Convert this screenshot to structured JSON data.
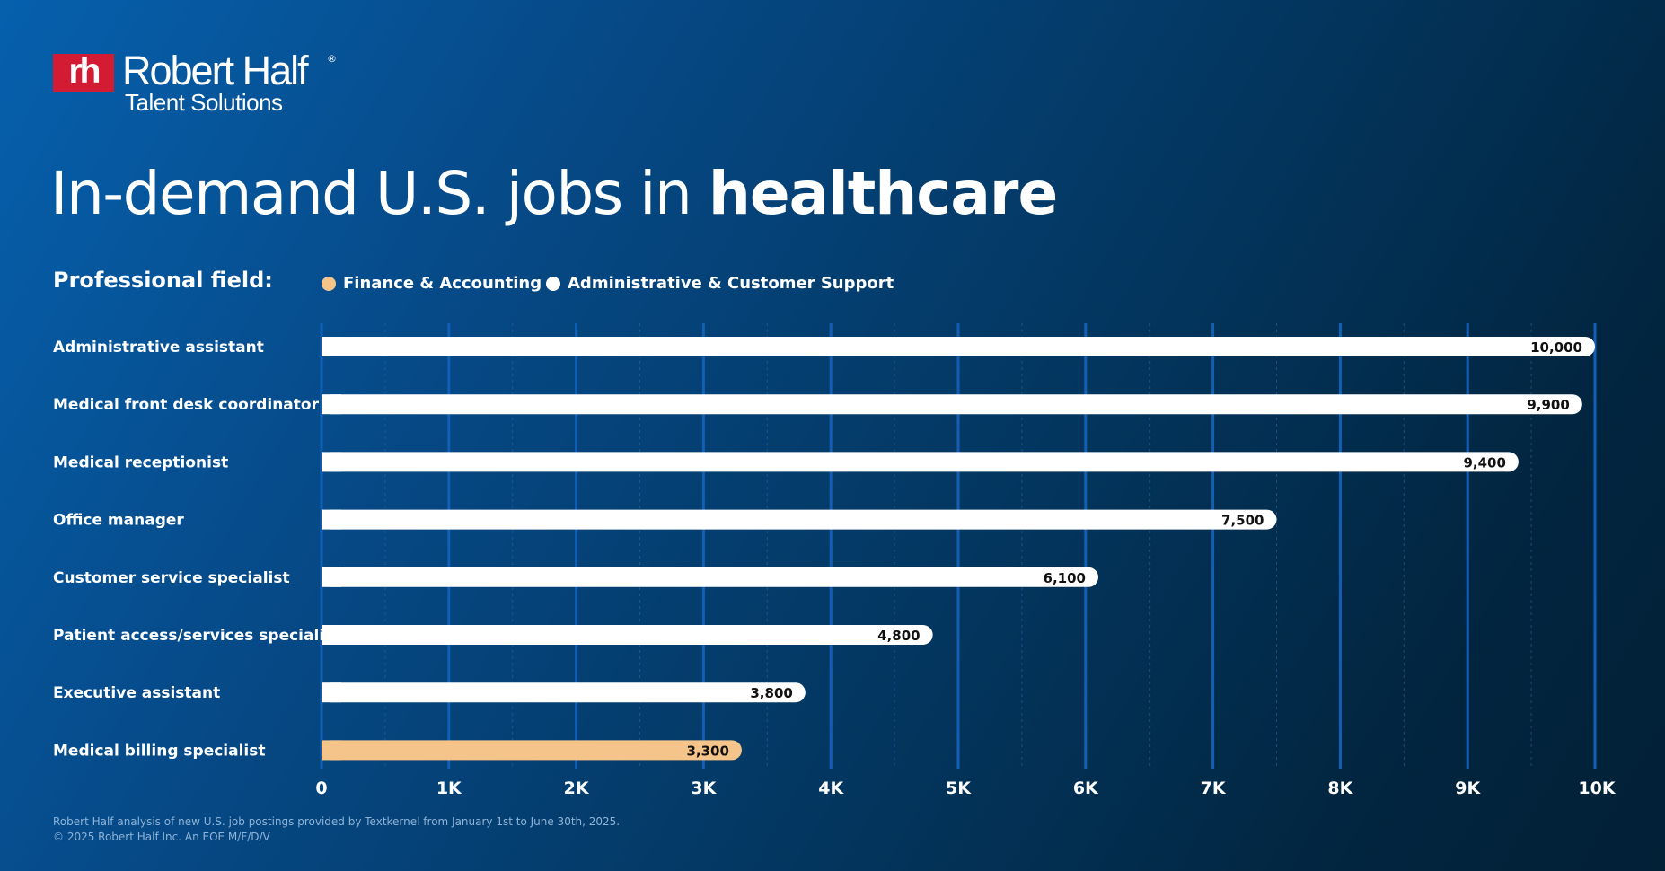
{
  "brand": {
    "mark": "rh",
    "name": "Robert Half",
    "registered": "®",
    "subtitle": "Talent Solutions",
    "mark_color": "#d31b34"
  },
  "title": {
    "prefix": "In-demand U.S. jobs in ",
    "emphasis": "healthcare"
  },
  "legend": {
    "label": "Professional field:",
    "items": [
      {
        "name": "Finance & Accounting",
        "color": "#f5c48a"
      },
      {
        "name": "Administrative & Customer Support",
        "color": "#ffffff"
      }
    ]
  },
  "chart_data": {
    "type": "bar",
    "orientation": "horizontal",
    "categories": [
      "Administrative assistant",
      "Medical front desk coordinator",
      "Medical receptionist",
      "Office manager",
      "Customer service specialist",
      "Patient access/services specialist",
      "Executive assistant",
      "Medical billing specialist"
    ],
    "values": [
      10000,
      9900,
      9400,
      7500,
      6100,
      4800,
      3800,
      3300
    ],
    "value_labels": [
      "10,000",
      "9,900",
      "9,400",
      "7,500",
      "6,100",
      "4,800",
      "3,800",
      "3,300"
    ],
    "fields": [
      "Administrative & Customer Support",
      "Administrative & Customer Support",
      "Administrative & Customer Support",
      "Administrative & Customer Support",
      "Administrative & Customer Support",
      "Administrative & Customer Support",
      "Administrative & Customer Support",
      "Finance & Accounting"
    ],
    "xlim": [
      0,
      10000
    ],
    "xticks": [
      0,
      1000,
      2000,
      3000,
      4000,
      5000,
      6000,
      7000,
      8000,
      9000,
      10000
    ],
    "xtick_labels": [
      "0",
      "1K",
      "2K",
      "3K",
      "4K",
      "5K",
      "6K",
      "7K",
      "8K",
      "9K",
      "10K"
    ],
    "grid": true,
    "legend_position": "top-left"
  },
  "footnotes": [
    "Robert Half analysis of new U.S. job postings provided by Textkernel from January 1st to June 30th, 2025.",
    "© 2025 Robert Half Inc. An EOE M/F/D/V"
  ]
}
